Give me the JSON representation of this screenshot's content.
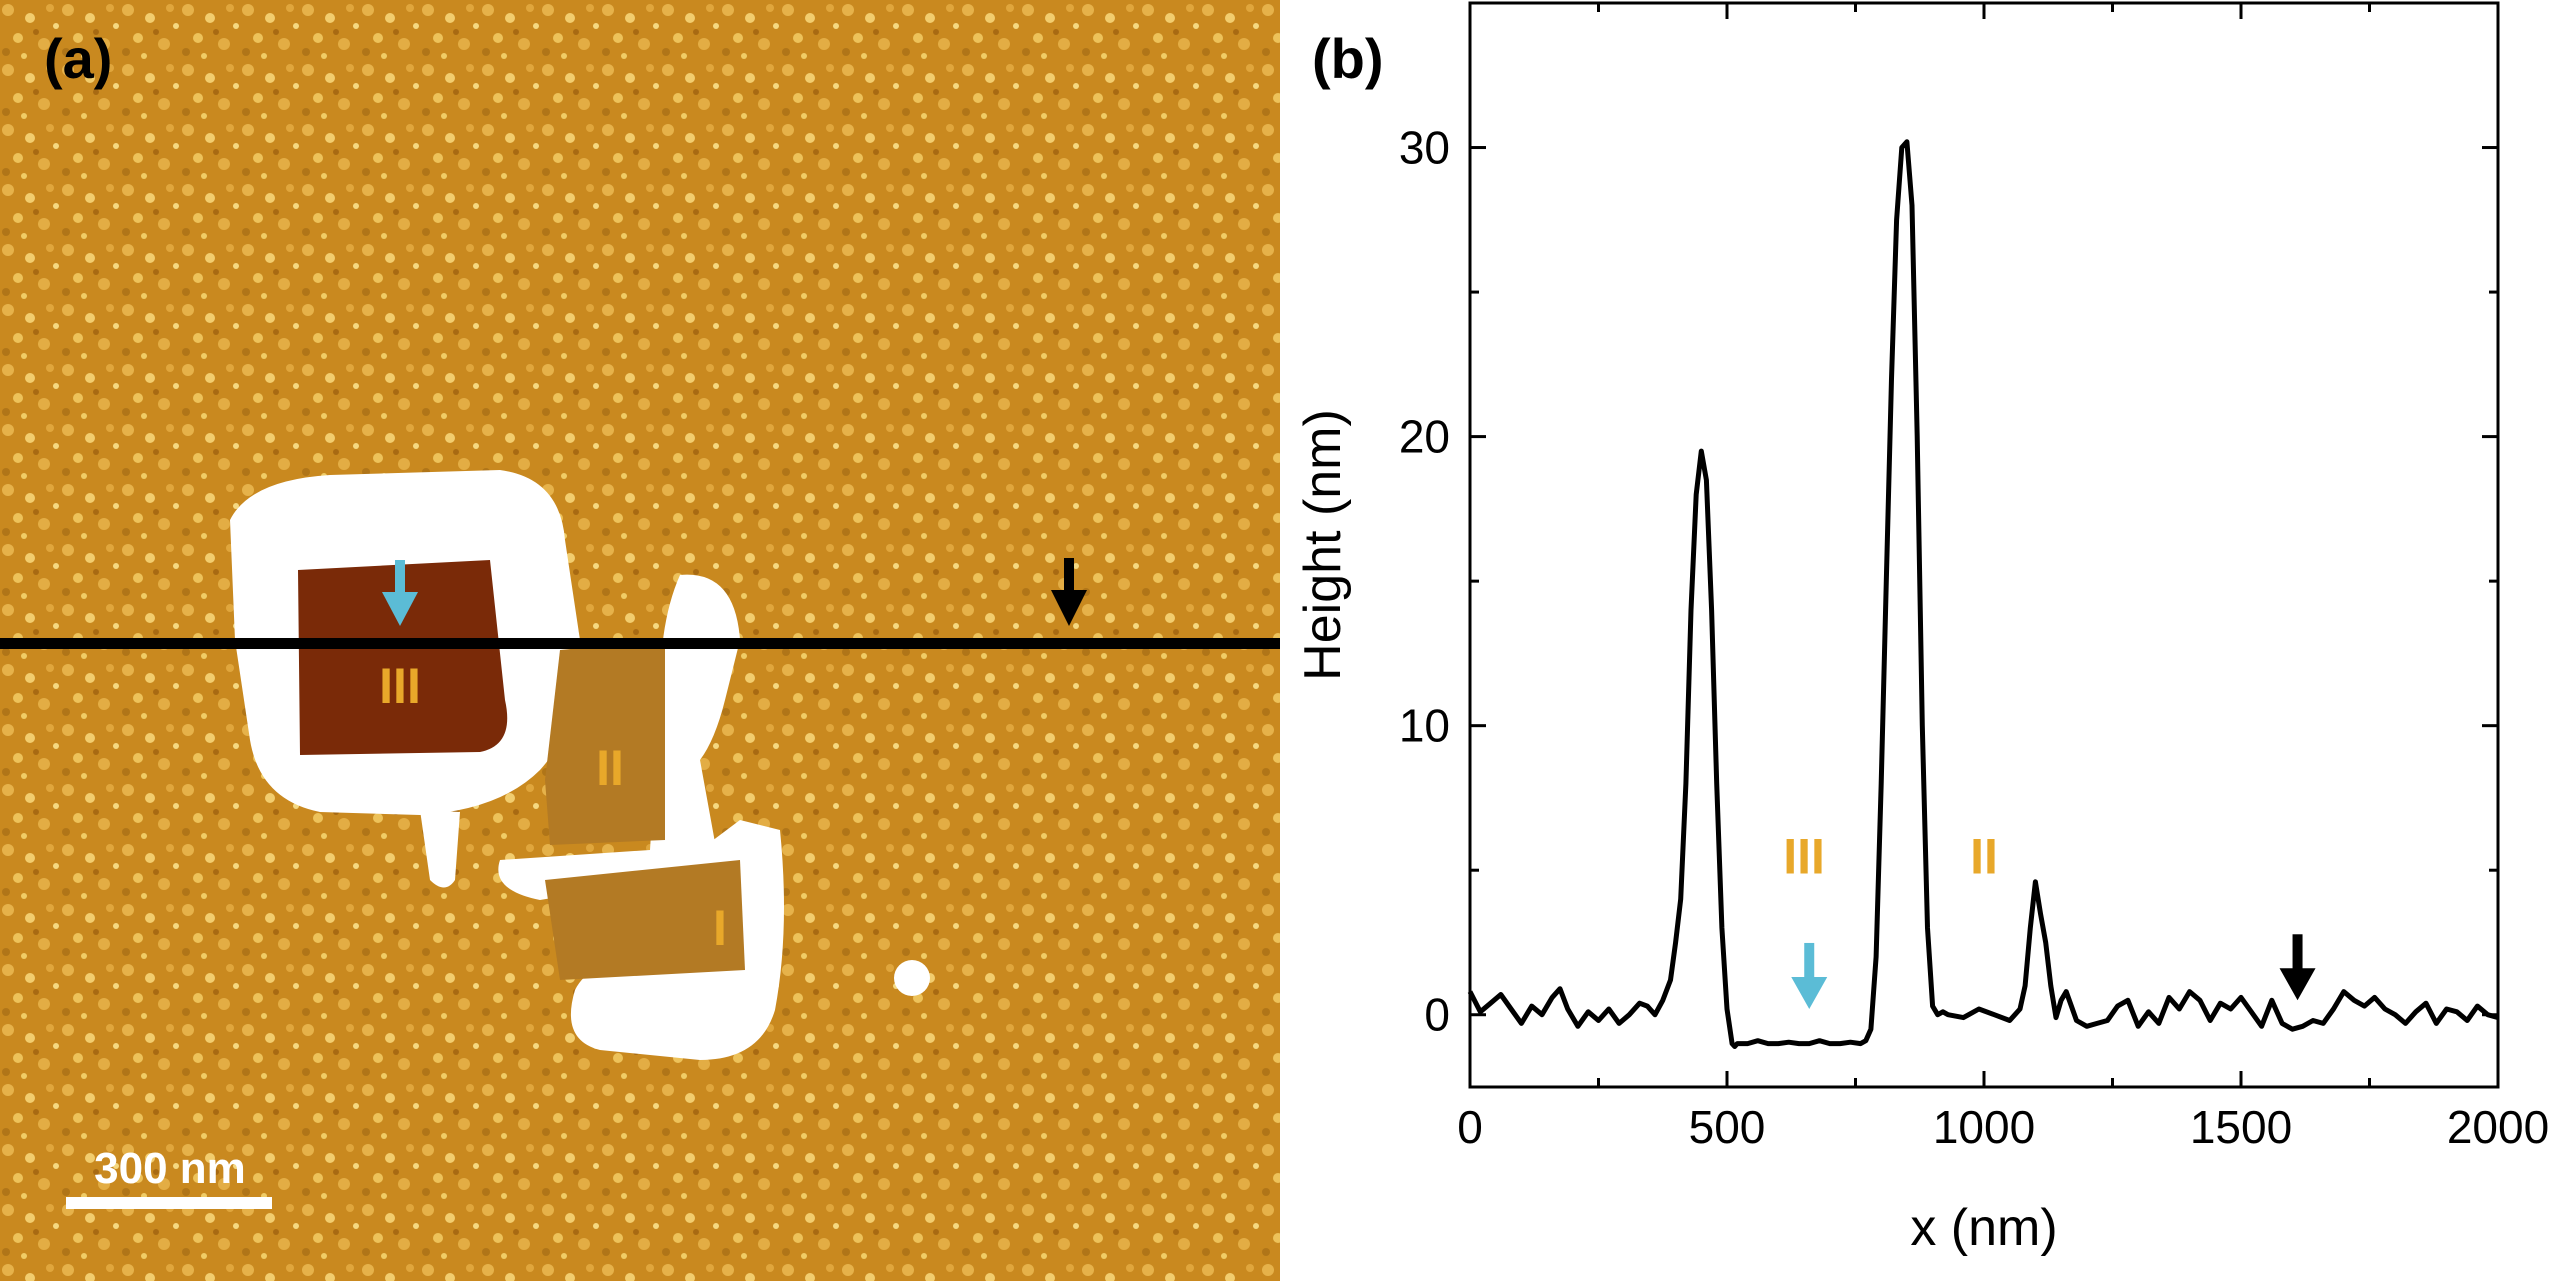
{
  "panel_a": {
    "label": "(a)",
    "scale_bar_label": "300 nm",
    "region_labels": [
      "III",
      "II",
      "I"
    ],
    "colors": {
      "substrate": "#c9891f",
      "etched": "#7a2a08",
      "highlight": "#ffffff",
      "region_text": "#e8a82a",
      "arrow_cyan": "#5bbcd6",
      "arrow_black": "#000000"
    }
  },
  "panel_b": {
    "label": "(b)",
    "region_labels": [
      "III",
      "II"
    ]
  },
  "chart_data": {
    "type": "line",
    "title": "",
    "xlabel": "x (nm)",
    "ylabel": "Height (nm)",
    "xlim": [
      0,
      2000
    ],
    "ylim": [
      -2.5,
      35
    ],
    "xticks": [
      0,
      500,
      1000,
      1500,
      2000
    ],
    "yticks": [
      0,
      10,
      20,
      30
    ],
    "xtick_labels": [
      "0",
      "500",
      "1000",
      "1500",
      "2000"
    ],
    "ytick_labels": [
      "0",
      "10",
      "20",
      "30"
    ],
    "grid": false,
    "series": [
      {
        "name": "height profile",
        "color": "#000000",
        "x": [
          0,
          20,
          40,
          60,
          80,
          100,
          120,
          140,
          160,
          175,
          190,
          210,
          230,
          250,
          270,
          290,
          310,
          330,
          345,
          360,
          375,
          390,
          400,
          410,
          420,
          430,
          440,
          450,
          460,
          470,
          480,
          490,
          500,
          510,
          515,
          520,
          540,
          560,
          580,
          600,
          620,
          640,
          660,
          680,
          700,
          720,
          740,
          760,
          770,
          780,
          790,
          800,
          810,
          820,
          830,
          840,
          850,
          860,
          870,
          880,
          890,
          900,
          910,
          920,
          930,
          960,
          990,
          1020,
          1050,
          1070,
          1080,
          1090,
          1100,
          1110,
          1120,
          1130,
          1140,
          1150,
          1160,
          1170,
          1180,
          1200,
          1220,
          1240,
          1260,
          1280,
          1300,
          1320,
          1340,
          1360,
          1380,
          1400,
          1420,
          1440,
          1460,
          1480,
          1500,
          1520,
          1540,
          1560,
          1580,
          1600,
          1620,
          1640,
          1660,
          1680,
          1700,
          1720,
          1740,
          1760,
          1780,
          1800,
          1820,
          1840,
          1860,
          1880,
          1900,
          1920,
          1940,
          1960,
          1980,
          2000
        ],
        "y": [
          0.8,
          0.1,
          0.4,
          0.7,
          0.2,
          -0.3,
          0.3,
          0.0,
          0.6,
          0.9,
          0.2,
          -0.4,
          0.1,
          -0.2,
          0.2,
          -0.3,
          0.0,
          0.4,
          0.3,
          0.0,
          0.5,
          1.2,
          2.5,
          4.0,
          8.0,
          14.0,
          18.0,
          19.5,
          18.5,
          14.0,
          8.0,
          3.0,
          0.2,
          -1.0,
          -1.1,
          -1.0,
          -1.0,
          -0.9,
          -1.0,
          -1.0,
          -0.95,
          -1.0,
          -1.0,
          -0.9,
          -1.0,
          -1.0,
          -0.95,
          -1.0,
          -0.9,
          -0.5,
          2.0,
          8.0,
          15.0,
          22.0,
          27.5,
          30.0,
          30.2,
          28.0,
          20.0,
          10.0,
          3.0,
          0.3,
          0.0,
          0.1,
          0.0,
          -0.1,
          0.2,
          0.0,
          -0.2,
          0.2,
          1.0,
          3.0,
          4.6,
          3.5,
          2.5,
          1.0,
          -0.1,
          0.5,
          0.8,
          0.3,
          -0.2,
          -0.4,
          -0.3,
          -0.2,
          0.3,
          0.5,
          -0.4,
          0.1,
          -0.3,
          0.6,
          0.2,
          0.8,
          0.5,
          -0.2,
          0.4,
          0.2,
          0.6,
          0.1,
          -0.4,
          0.5,
          -0.3,
          -0.5,
          -0.4,
          -0.2,
          -0.3,
          0.2,
          0.8,
          0.5,
          0.3,
          0.6,
          0.2,
          0.0,
          -0.3,
          0.1,
          0.4,
          -0.3,
          0.2,
          0.1,
          -0.2,
          0.3,
          0.0,
          -0.1
        ]
      }
    ],
    "annotations": [
      {
        "text": "III",
        "x": 650,
        "y": 5.5,
        "color": "#e8a82a"
      },
      {
        "text": "II",
        "x": 1000,
        "y": 5.5,
        "color": "#e8a82a"
      },
      {
        "arrow": "down",
        "x": 660,
        "y": 0.2,
        "color": "#5bbcd6"
      },
      {
        "arrow": "down",
        "x": 1610,
        "y": 0.5,
        "color": "#000000"
      }
    ]
  }
}
